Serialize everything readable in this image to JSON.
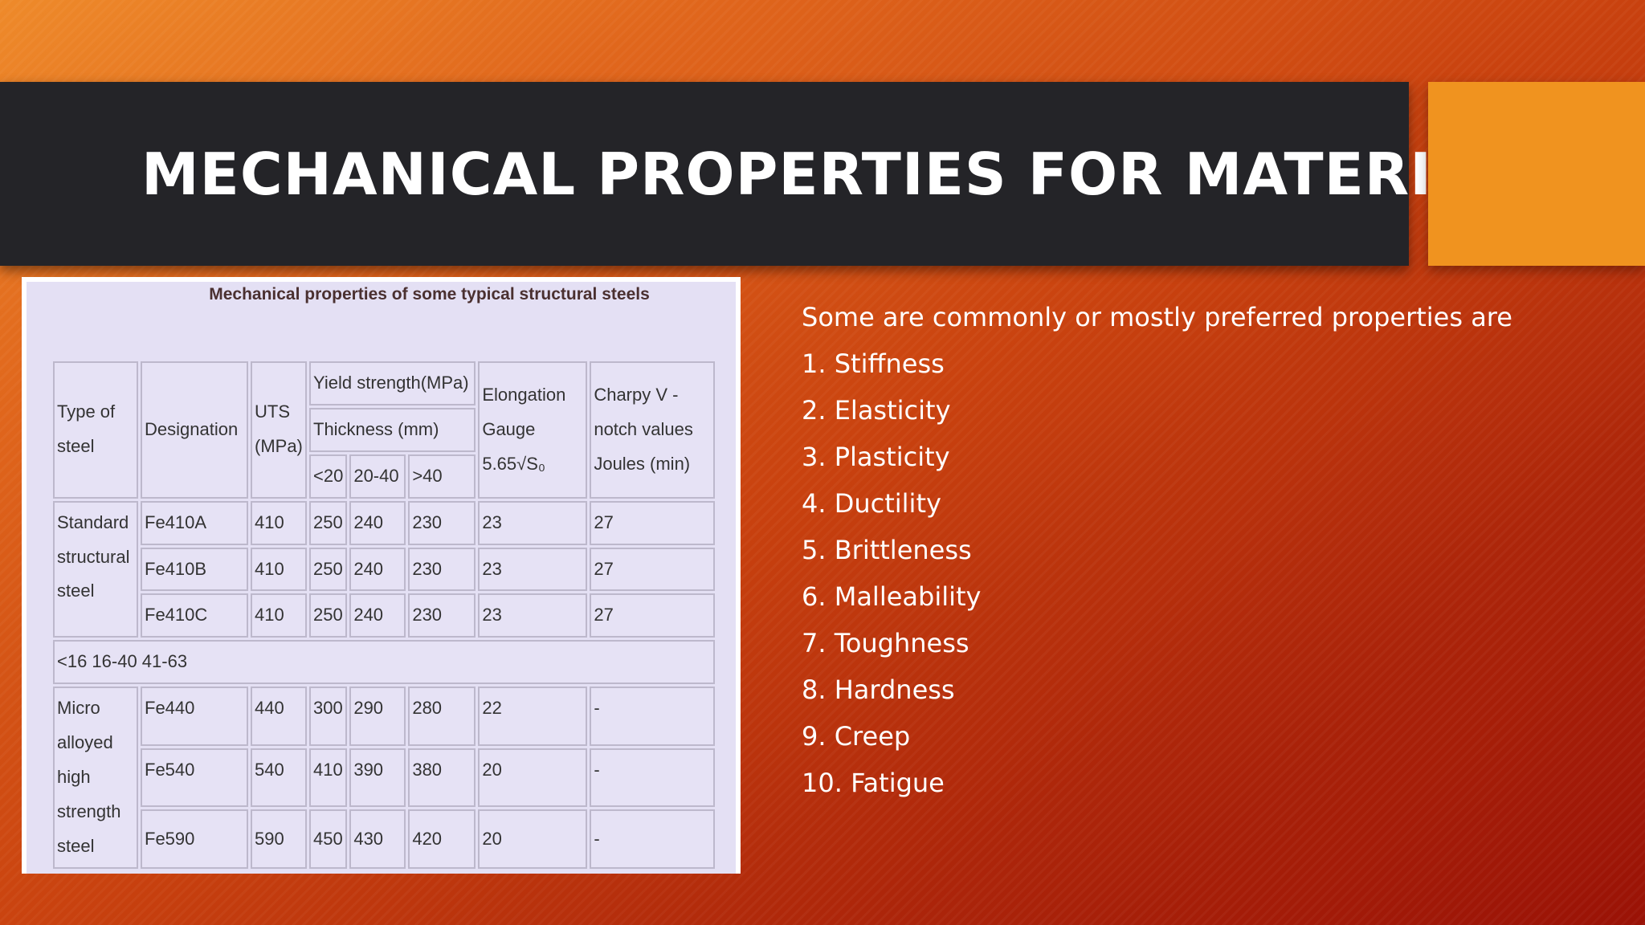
{
  "slide": {
    "title": "MECHANICAL PROPERTIES FOR MATERIALS",
    "intro": "Some are commonly or mostly preferred properties are",
    "properties": [
      "1. Stiffness",
      "2. Elasticity",
      "3. Plasticity",
      "4. Ductility",
      "5. Brittleness",
      "6. Malleability",
      "7. Toughness",
      "8. Hardness",
      "9. Creep",
      "10. Fatigue"
    ],
    "colors": {
      "title_bar": "#242428",
      "accent": "#f0931f",
      "background_start": "#ee8a2a",
      "background_end": "#9a1206"
    }
  },
  "table": {
    "caption": "Mechanical properties of some typical structural steels",
    "headers": {
      "type": "Type of steel",
      "designation": "Designation",
      "uts": "UTS (MPa)",
      "yield": "Yield strength(MPa)",
      "thickness": "Thickness (mm)",
      "thickness_ranges": [
        "<20",
        "20-40",
        ">40"
      ],
      "elongation": "Elongation Gauge",
      "elongation_formula": "5.65√S₀",
      "charpy": "Charpy V - notch values Joules (min)"
    },
    "standard_group": {
      "type": "Standard structural steel",
      "rows": [
        {
          "designation": "Fe410A",
          "uts": "410",
          "y1": "250",
          "y2": "240",
          "y3": "230",
          "elong": "23",
          "charpy": "27"
        },
        {
          "designation": "Fe410B",
          "uts": "410",
          "y1": "250",
          "y2": "240",
          "y3": "230",
          "elong": "23",
          "charpy": "27"
        },
        {
          "designation": "Fe410C",
          "uts": "410",
          "y1": "250",
          "y2": "240",
          "y3": "230",
          "elong": "23",
          "charpy": "27"
        }
      ]
    },
    "separator": "<16 16-40 41-63",
    "micro_group": {
      "type": "Micro alloyed high strength steel",
      "rows": [
        {
          "designation": "Fe440",
          "uts": "440",
          "y1": "300",
          "y2": "290",
          "y3": "280",
          "elong": "22",
          "charpy": "-"
        },
        {
          "designation": "Fe540",
          "uts": "540",
          "y1": "410",
          "y2": "390",
          "y3": "380",
          "elong": "20",
          "charpy": "-"
        },
        {
          "designation": "Fe590",
          "uts": "590",
          "y1": "450",
          "y2": "430",
          "y3": "420",
          "elong": "20",
          "charpy": "-"
        }
      ]
    }
  }
}
